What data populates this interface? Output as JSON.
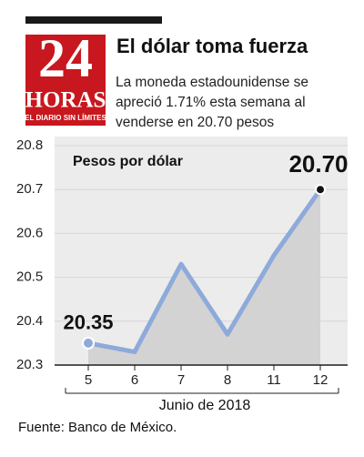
{
  "logo": {
    "number": "24",
    "name": "HORAS",
    "tagline": "EL DIARIO SIN LÍMITES"
  },
  "chart_data": {
    "type": "line",
    "title": "El dólar toma fuerza",
    "subtitle": "La moneda estadounidense se apreció 1.71% esta semana al venderse en 20.70 pesos",
    "y_label": "Pesos por dólar",
    "x_label": "Junio de 2018",
    "source": "Fuente: Banco de México.",
    "categories": [
      "5",
      "6",
      "7",
      "8",
      "11",
      "12"
    ],
    "values": [
      20.35,
      20.33,
      20.53,
      20.37,
      20.55,
      20.7
    ],
    "value_labels": [
      "20.35",
      null,
      null,
      null,
      null,
      "20.70"
    ],
    "color": "#8eaadb",
    "fill_color": "#d3d3d3",
    "ylim": [
      20.3,
      20.8
    ],
    "yticks": [
      20.3,
      20.4,
      20.5,
      20.6,
      20.7,
      20.8
    ],
    "grid": true
  }
}
